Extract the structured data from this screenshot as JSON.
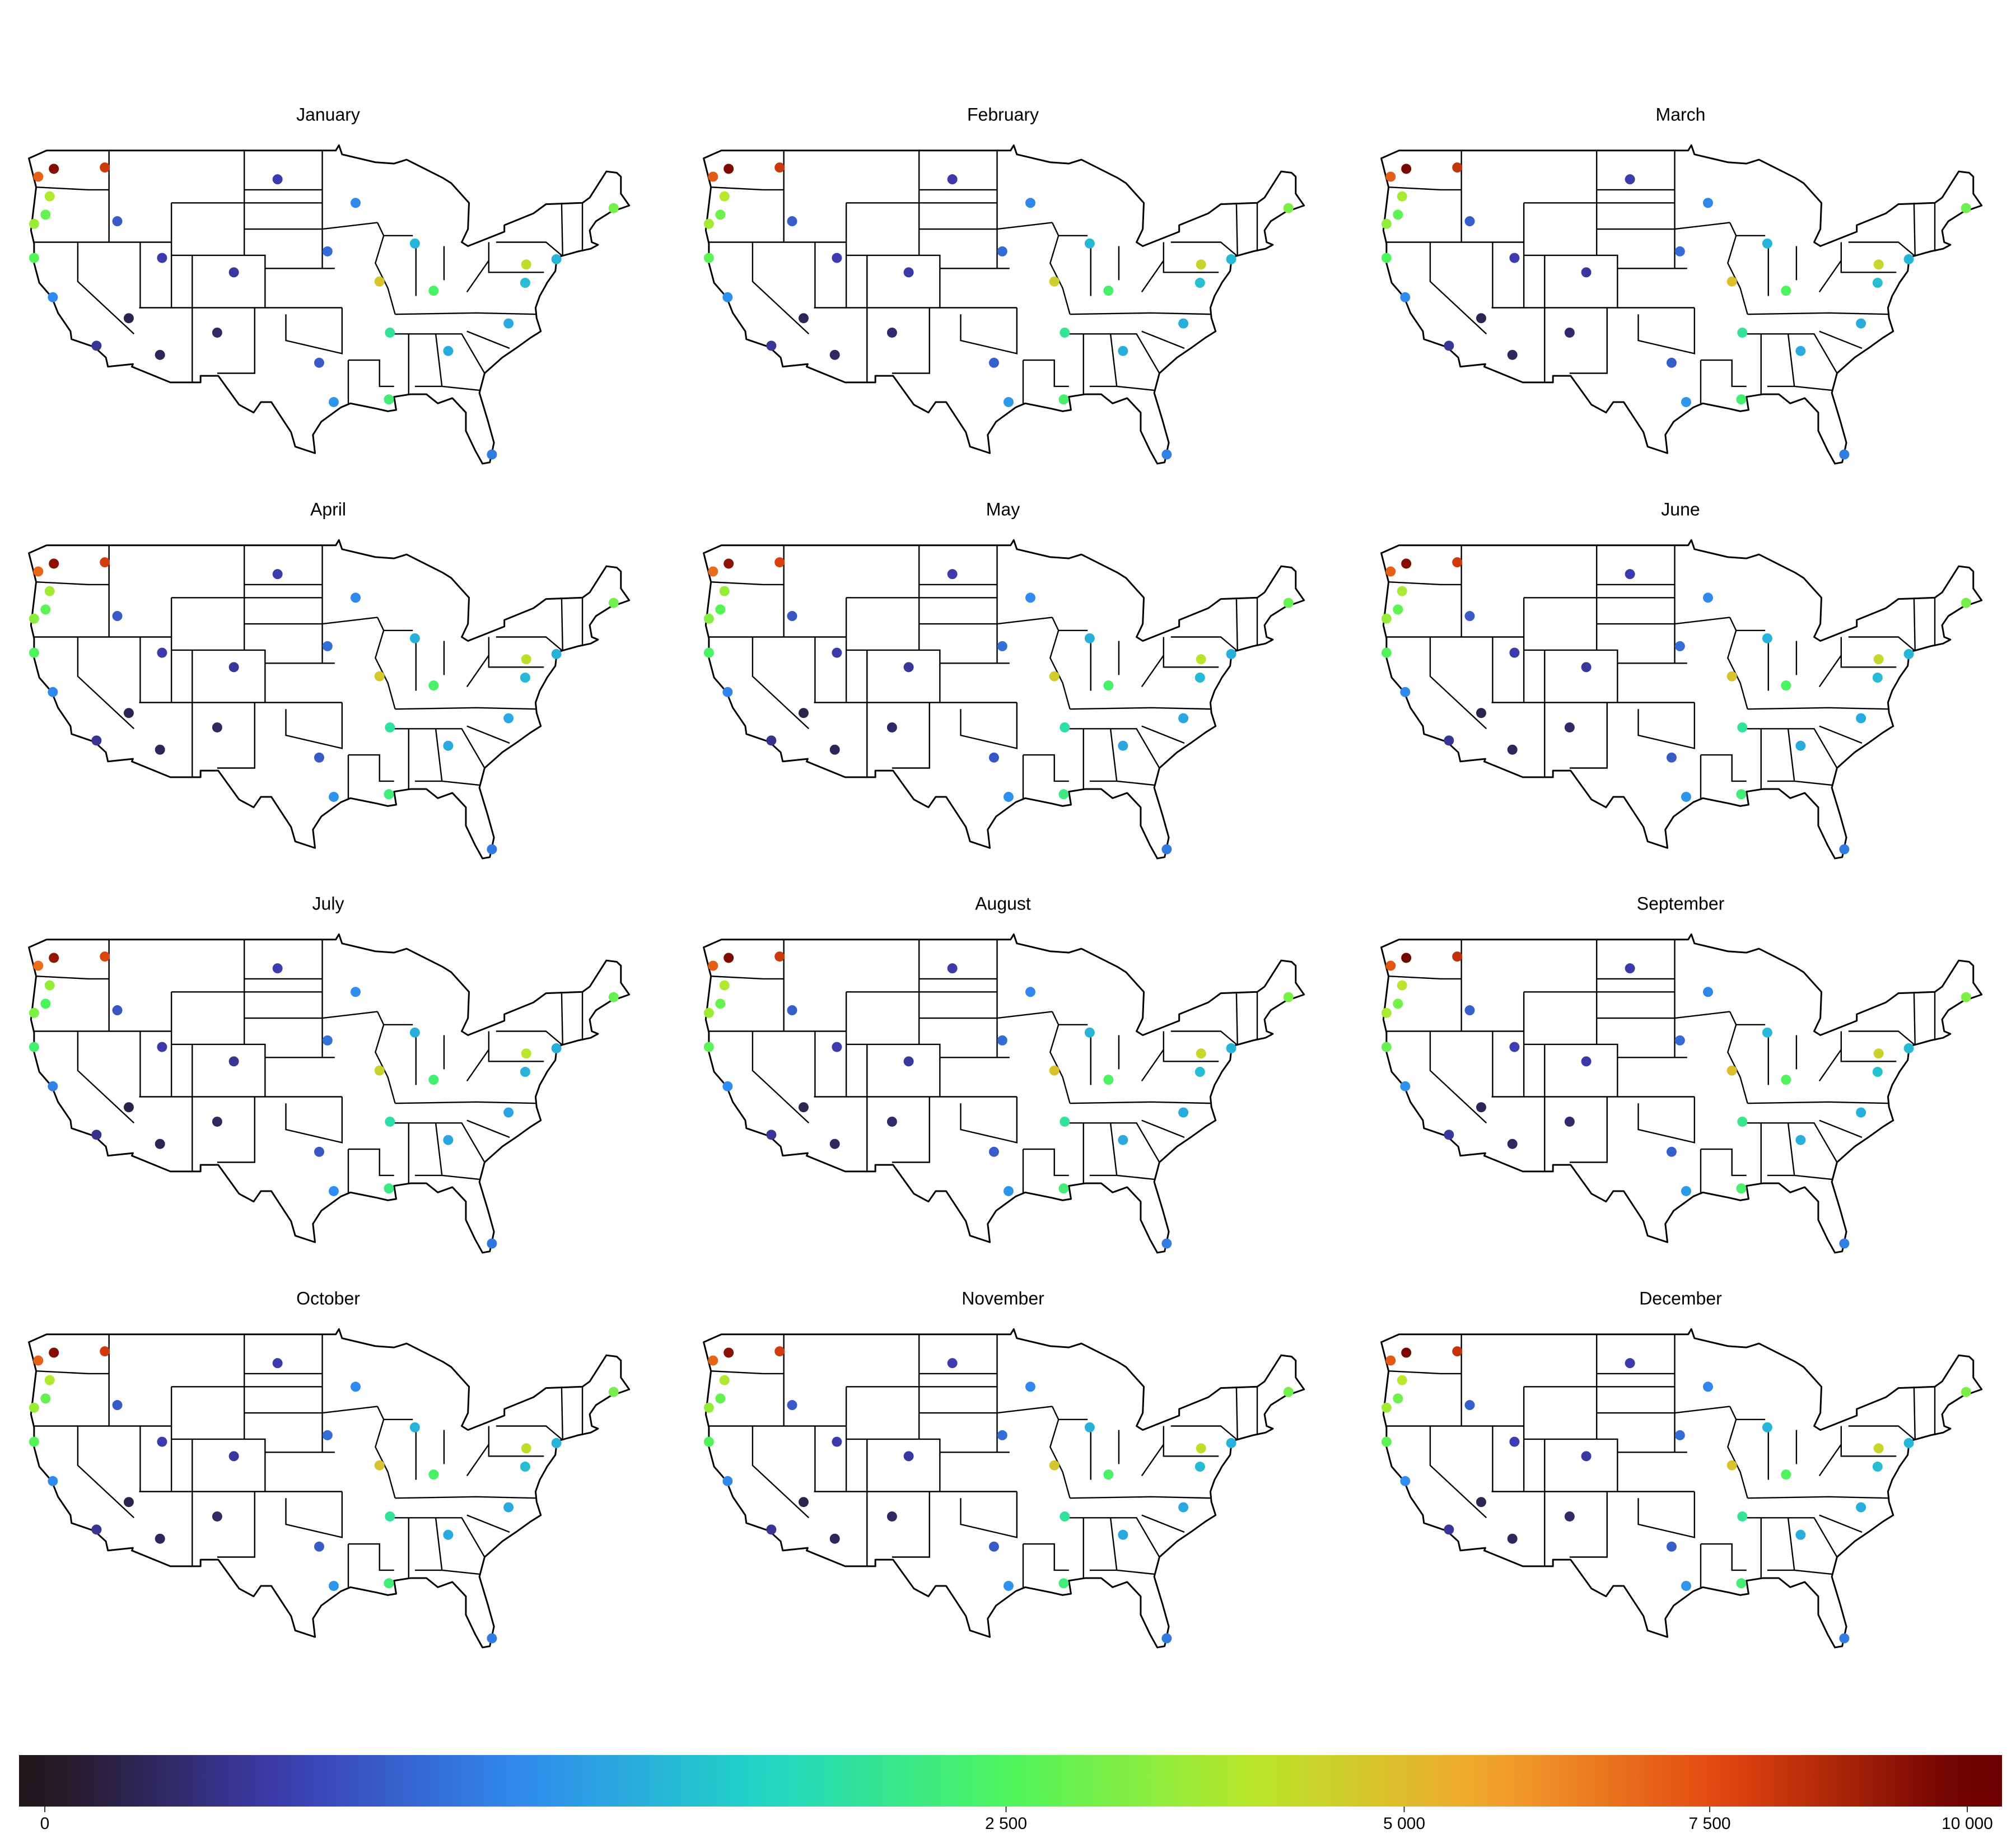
{
  "chart_data": {
    "type": "scatter",
    "x": [
      -122.3,
      -123.8,
      -122.7,
      -123.1,
      -124.2,
      -117.4,
      -116.2,
      -124.2,
      -122.4,
      -118.2,
      -115.1,
      -112.1,
      -111.9,
      -105.0,
      -106.6,
      -100.8,
      -96.0,
      -96.8,
      -95.4,
      -93.3,
      -87.6,
      -91.0,
      -90.0,
      -90.1,
      -84.4,
      -85.8,
      -76.9,
      -77.0,
      -78.6,
      -80.2,
      -74.0,
      -68.5
    ],
    "y": [
      47.6,
      47.0,
      45.5,
      44.1,
      43.4,
      47.7,
      43.6,
      40.8,
      37.8,
      34.1,
      36.2,
      33.4,
      40.8,
      39.7,
      35.1,
      46.8,
      41.3,
      32.8,
      29.8,
      45.0,
      41.9,
      39.0,
      35.1,
      30.0,
      33.7,
      38.3,
      40.3,
      38.9,
      35.8,
      25.8,
      40.7,
      44.6
    ],
    "series": [
      {
        "name": "January",
        "values": [
          9500,
          7000,
          3800,
          2800,
          3500,
          8000,
          300,
          2600,
          600,
          100,
          20,
          30,
          150,
          120,
          40,
          150,
          400,
          300,
          700,
          600,
          1000,
          4800,
          1800,
          2200,
          900,
          2400,
          4200,
          1100,
          900,
          500,
          1000,
          3000
        ]
      },
      {
        "name": "February",
        "values": [
          9600,
          7200,
          3900,
          2900,
          3600,
          8100,
          320,
          2700,
          650,
          110,
          25,
          35,
          160,
          130,
          45,
          140,
          380,
          320,
          750,
          580,
          1050,
          4500,
          1900,
          2300,
          950,
          2300,
          4400,
          1150,
          950,
          520,
          1050,
          3100
        ]
      },
      {
        "name": "March",
        "values": [
          9700,
          7100,
          3700,
          2700,
          3400,
          8200,
          310,
          2500,
          620,
          105,
          22,
          32,
          155,
          125,
          42,
          145,
          390,
          310,
          720,
          590,
          1020,
          4900,
          1850,
          2250,
          920,
          2500,
          4300,
          1120,
          920,
          510,
          1020,
          2900
        ]
      },
      {
        "name": "April",
        "values": [
          9400,
          6900,
          3600,
          2700,
          3300,
          7900,
          290,
          2500,
          590,
          95,
          18,
          28,
          145,
          115,
          38,
          150,
          410,
          290,
          680,
          610,
          980,
          4700,
          1750,
          2150,
          880,
          2350,
          4100,
          1080,
          880,
          490,
          980,
          2950
        ]
      },
      {
        "name": "May",
        "values": [
          9300,
          6800,
          3500,
          2600,
          3200,
          7800,
          280,
          2400,
          570,
          90,
          16,
          26,
          140,
          110,
          36,
          155,
          420,
          280,
          660,
          620,
          960,
          4600,
          1700,
          2100,
          860,
          2300,
          4000,
          1050,
          860,
          480,
          960,
          2850
        ]
      },
      {
        "name": "June",
        "values": [
          9500,
          7000,
          3700,
          2750,
          3450,
          8000,
          300,
          2550,
          600,
          100,
          20,
          30,
          150,
          120,
          40,
          150,
          400,
          300,
          700,
          600,
          1000,
          4800,
          1800,
          2200,
          900,
          2450,
          4250,
          1100,
          900,
          500,
          1000,
          3000
        ]
      },
      {
        "name": "July",
        "values": [
          9200,
          6700,
          3400,
          2500,
          3100,
          7700,
          270,
          2300,
          550,
          85,
          15,
          24,
          135,
          105,
          34,
          160,
          430,
          270,
          640,
          630,
          940,
          4400,
          1650,
          2050,
          840,
          2250,
          3900,
          1020,
          840,
          470,
          940,
          2800
        ]
      },
      {
        "name": "August",
        "values": [
          9600,
          7100,
          3800,
          2850,
          3550,
          8100,
          310,
          2650,
          630,
          105,
          21,
          31,
          152,
          122,
          41,
          148,
          395,
          305,
          710,
          595,
          1010,
          4850,
          1820,
          2220,
          910,
          2420,
          4350,
          1110,
          910,
          505,
          1010,
          3050
        ]
      },
      {
        "name": "September",
        "values": [
          9800,
          7300,
          4000,
          3000,
          3700,
          8300,
          330,
          2800,
          680,
          115,
          26,
          36,
          165,
          135,
          46,
          142,
          385,
          325,
          760,
          585,
          1060,
          4900,
          1950,
          2350,
          960,
          2550,
          4500,
          1160,
          960,
          530,
          1060,
          3150
        ]
      },
      {
        "name": "October",
        "values": [
          9500,
          7000,
          3800,
          2800,
          3500,
          8000,
          300,
          2600,
          600,
          100,
          20,
          30,
          150,
          120,
          40,
          150,
          400,
          300,
          700,
          600,
          1000,
          4800,
          1800,
          2200,
          900,
          2400,
          4200,
          1100,
          900,
          500,
          1000,
          3000
        ]
      },
      {
        "name": "November",
        "values": [
          9400,
          6950,
          3750,
          2750,
          3450,
          7950,
          295,
          2550,
          590,
          98,
          19,
          29,
          148,
          118,
          39,
          152,
          405,
          295,
          690,
          605,
          990,
          4750,
          1780,
          2180,
          890,
          2380,
          4150,
          1090,
          890,
          495,
          990,
          2980
        ]
      },
      {
        "name": "December",
        "values": [
          9700,
          7200,
          3900,
          2900,
          3600,
          8200,
          315,
          2700,
          640,
          108,
          23,
          33,
          158,
          128,
          44,
          146,
          392,
          315,
          730,
          592,
          1030,
          4850,
          1880,
          2280,
          930,
          2480,
          4350,
          1130,
          930,
          515,
          1030,
          3080
        ]
      }
    ],
    "colorbar": {
      "lim": [
        0,
        10000
      ],
      "scale": "sqrt",
      "ticks": [
        0,
        {
          "value": 2500,
          "label": "2 500"
        },
        {
          "value": 5000,
          "label": "5 000"
        },
        {
          "value": 7500,
          "label": "7 500"
        },
        {
          "value": 10000,
          "label": "10 000"
        }
      ],
      "colors": [
        "#23171b",
        "#3d3cb0",
        "#2f8cef",
        "#21d6c4",
        "#4cf55c",
        "#b7e82b",
        "#f3a52c",
        "#e0450f",
        "#6b0000"
      ]
    }
  }
}
